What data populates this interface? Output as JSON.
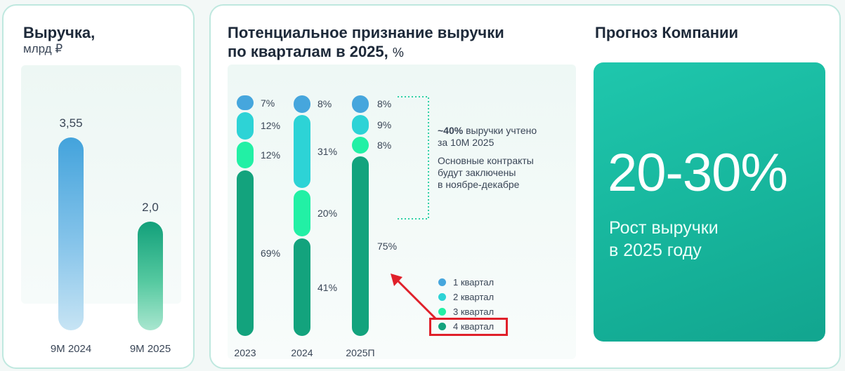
{
  "revenue_card": {
    "title": "Выручка,",
    "unit": "млрд ₽"
  },
  "quarter_card": {
    "title_line1": "Потенциальное признание выручки",
    "title_line2": "по кварталам в 2025,",
    "title_unit": "%"
  },
  "annotation": {
    "line1_bold": "~40%",
    "line1_rest": " выручки учтено",
    "line2": "за 10М 2025",
    "line3": "Основные контракты",
    "line4": "будут заключены",
    "line5": "в ноябре-декабре"
  },
  "forecast": {
    "title": "Прогноз Компании",
    "value": "20-30%",
    "caption_line1": "Рост выручки",
    "caption_line2": "в 2025 году"
  },
  "colors": {
    "q1": "#46a6dd",
    "q2": "#2dd3d6",
    "q3": "#22f0a5",
    "q4": "#13a37d",
    "highlight": "#e0202a",
    "dotted": "#2fd1a6"
  },
  "chart_data": [
    {
      "type": "bar",
      "title": "Выручка,",
      "ylabel": "млрд ₽",
      "categories": [
        "9М 2024",
        "9М 2025"
      ],
      "values": [
        3.55,
        2.0
      ],
      "value_labels": [
        "3,55",
        "2,0"
      ],
      "ylim": [
        0,
        4.3
      ]
    },
    {
      "type": "bar",
      "stacked": true,
      "title": "Потенциальное признание выручки по кварталам в 2025, %",
      "categories": [
        "2023",
        "2024",
        "2025П"
      ],
      "series": [
        {
          "name": "1 квартал",
          "values": [
            7,
            8,
            8
          ]
        },
        {
          "name": "2 квартал",
          "values": [
            12,
            31,
            9
          ]
        },
        {
          "name": "3 квартал",
          "values": [
            12,
            20,
            8
          ]
        },
        {
          "name": "4 квартал",
          "values": [
            69,
            41,
            75
          ]
        }
      ],
      "value_labels": [
        [
          "7%",
          "12%",
          "12%",
          "69%"
        ],
        [
          "8%",
          "31%",
          "20%",
          "41%"
        ],
        [
          "8%",
          "9%",
          "8%",
          "75%"
        ]
      ],
      "legend_position": "bottom-right",
      "highlighted_legend_entry": "4 квартал"
    }
  ]
}
